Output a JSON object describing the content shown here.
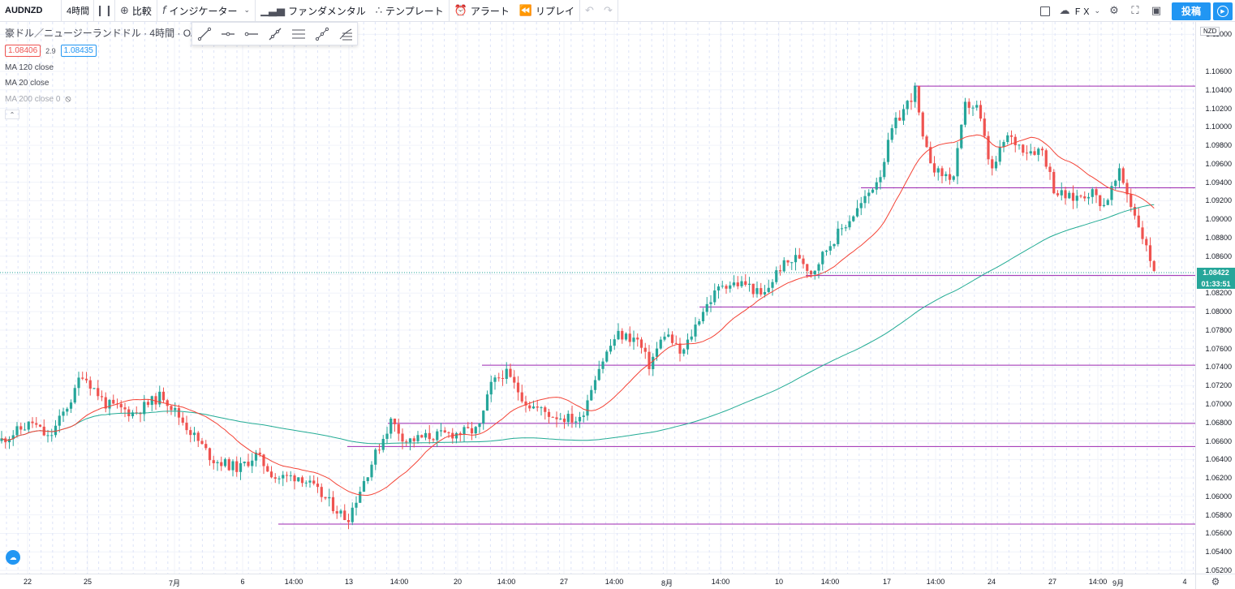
{
  "toolbar": {
    "symbol": "AUDNZD",
    "interval": "4時間",
    "compare_label": "比較",
    "indicators_label": "インジケーター",
    "fundamentals_label": "ファンダメンタル",
    "template_label": "テンプレート",
    "alert_label": "アラート",
    "replay_label": "リプレイ",
    "fx_label": "ＦＸ",
    "post_label": "投稿"
  },
  "legend": {
    "title": "豪ドル／ニュージーランドドル · 4時間 · OA",
    "bid": "1.08406",
    "spread": "2.9",
    "ask": "1.08435",
    "indicators": [
      "MA 120 close",
      "MA 20 close",
      "MA 200 close 0"
    ]
  },
  "price_axis": {
    "currency": "NZD",
    "ticks": [
      "1.11000",
      "1.10600",
      "1.10400",
      "1.10200",
      "1.10000",
      "1.09800",
      "1.09600",
      "1.09400",
      "1.09200",
      "1.09000",
      "1.08800",
      "1.08600",
      "1.08400",
      "1.08200",
      "1.08000",
      "1.07800",
      "1.07600",
      "1.07400",
      "1.07200",
      "1.07000",
      "1.06800",
      "1.06600",
      "1.06400",
      "1.06200",
      "1.06000",
      "1.05800",
      "1.05600",
      "1.05400",
      "1.05200"
    ],
    "last_price": "1.08422",
    "countdown": "01:33:51",
    "last_price_color": "#26a69a"
  },
  "time_axis": {
    "ticks": [
      "22",
      "25",
      "7月",
      "6",
      "14:00",
      "13",
      "14:00",
      "20",
      "14:00",
      "27",
      "14:00",
      "8月",
      "14:00",
      "10",
      "14:00",
      "17",
      "14:00",
      "24",
      "27",
      "14:00",
      "9月",
      "4"
    ]
  },
  "colors": {
    "up": "#26a69a",
    "down": "#ef5350",
    "ma20": "#f44336",
    "ma120": "#22ab94",
    "hline": "#9c27b0",
    "accent": "#2196f3"
  },
  "chart_data": {
    "type": "candlestick",
    "symbol": "AUDNZD",
    "interval": "4h",
    "ylim": [
      1.052,
      1.111
    ],
    "horizontal_lines": [
      1.1044,
      1.0934,
      1.0839,
      1.0805,
      1.0742,
      1.0679,
      1.0654,
      1.057
    ],
    "ma_lines": [
      "MA 120 close",
      "MA 20 close"
    ]
  }
}
